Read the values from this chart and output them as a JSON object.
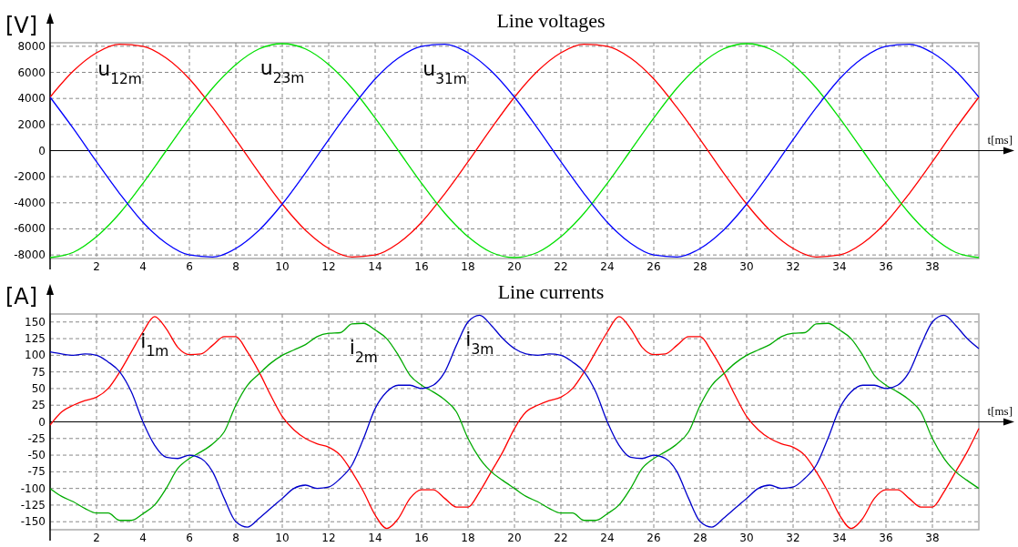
{
  "chart_data": [
    {
      "type": "line",
      "title": "Line voltages",
      "xlabel": "t[ms]",
      "ylabel": "[V]",
      "x": [
        0,
        1,
        2,
        3,
        4,
        5,
        6,
        7,
        8,
        9,
        10,
        11,
        12,
        13,
        14,
        15,
        16,
        17,
        18,
        19,
        20,
        21,
        22,
        23,
        24,
        25,
        26,
        27,
        28,
        29,
        30,
        31,
        32,
        33,
        34,
        35,
        36,
        37,
        38,
        39,
        40
      ],
      "series": [
        {
          "name": "u$_{12m}$",
          "color": "#ff0000",
          "values": [
            4100,
            6100,
            7500,
            8150,
            8000,
            7100,
            5500,
            3300,
            850,
            -1700,
            -4100,
            -6100,
            -7500,
            -8150,
            -8000,
            -7100,
            -5500,
            -3300,
            -850,
            1700,
            4100,
            6100,
            7500,
            8150,
            8000,
            7100,
            5500,
            3300,
            850,
            -1700,
            -4100,
            -6100,
            -7500,
            -8150,
            -8000,
            -7100,
            -5500,
            -3300,
            -850,
            1700,
            4100
          ]
        },
        {
          "name": "u$_{23m}$",
          "color": "#00e000",
          "values": [
            -8200,
            -7800,
            -6600,
            -4800,
            -2500,
            0,
            2500,
            4800,
            6600,
            7800,
            8200,
            7800,
            6600,
            4800,
            2500,
            0,
            -2500,
            -4800,
            -6600,
            -7800,
            -8200,
            -7800,
            -6600,
            -4800,
            -2500,
            0,
            2500,
            4800,
            6600,
            7800,
            8200,
            7800,
            6600,
            4800,
            2500,
            0,
            -2500,
            -4800,
            -6600,
            -7800,
            -8200
          ]
        },
        {
          "name": "u$_{31m}$",
          "color": "#0000ff",
          "values": [
            4100,
            1700,
            -850,
            -3300,
            -5500,
            -7100,
            -8000,
            -8150,
            -7500,
            -6100,
            -4100,
            -1700,
            850,
            3300,
            5500,
            7100,
            8000,
            8150,
            7500,
            6100,
            4100,
            1700,
            -850,
            -3300,
            -5500,
            -7100,
            -8000,
            -8150,
            -7500,
            -6100,
            -4100,
            -1700,
            850,
            3300,
            5500,
            7100,
            8000,
            8150,
            7500,
            6100,
            4100
          ]
        }
      ],
      "xlim": [
        0,
        40
      ],
      "xticks": [
        2,
        4,
        6,
        8,
        10,
        12,
        14,
        16,
        18,
        20,
        22,
        24,
        26,
        28,
        30,
        32,
        34,
        36,
        38
      ],
      "ylim": [
        -8270,
        8270
      ],
      "yticks": [
        -8000,
        -6000,
        -4000,
        -2000,
        0,
        2000,
        4000,
        6000,
        8000
      ],
      "grid": true,
      "legend": false,
      "line_style": "solid"
    },
    {
      "type": "line",
      "title": "Line currents",
      "xlabel": "t[ms]",
      "ylabel": "[A]",
      "x": [
        0,
        0.5,
        1,
        1.5,
        2,
        2.5,
        3,
        3.5,
        4,
        4.5,
        5,
        5.5,
        6,
        6.5,
        7,
        7.5,
        8,
        8.5,
        9,
        9.5,
        10,
        10.5,
        11,
        11.5,
        12,
        12.5,
        13,
        13.5,
        14,
        14.5,
        15,
        15.5,
        16,
        16.5,
        17,
        17.5,
        18,
        18.5,
        19,
        19.5,
        20,
        20.5,
        21,
        21.5,
        22,
        22.5,
        23,
        23.5,
        24,
        24.5,
        25,
        25.5,
        26,
        26.5,
        27,
        27.5,
        28,
        28.5,
        29,
        29.5,
        30,
        30.5,
        31,
        31.5,
        32,
        32.5,
        33,
        33.5,
        34,
        34.5,
        35,
        35.5,
        36,
        36.5,
        37,
        37.5,
        38,
        38.5,
        39,
        39.5,
        40
      ],
      "series": [
        {
          "name": "i$_{1m}$",
          "color": "#ff0000",
          "values": [
            -5,
            15,
            25,
            32,
            37,
            50,
            75,
            105,
            135,
            158,
            140,
            112,
            101,
            102,
            115,
            128,
            128,
            105,
            75,
            40,
            8,
            -12,
            -25,
            -33,
            -38,
            -50,
            -75,
            -105,
            -140,
            -160,
            -145,
            -115,
            -102,
            -102,
            -115,
            -128,
            -128,
            -105,
            -75,
            -45,
            -10,
            15,
            25,
            32,
            37,
            50,
            75,
            105,
            135,
            158,
            140,
            112,
            101,
            102,
            115,
            128,
            128,
            105,
            75,
            40,
            8,
            -12,
            -25,
            -33,
            -38,
            -50,
            -75,
            -105,
            -140,
            -160,
            -145,
            -115,
            -102,
            -102,
            -115,
            -128,
            -128,
            -105,
            -75,
            -45,
            -10
          ]
        },
        {
          "name": "i$_{2m}$",
          "color": "#00aa00",
          "values": [
            -100,
            -112,
            -120,
            -130,
            -137,
            -137,
            -148,
            -148,
            -138,
            -125,
            -100,
            -70,
            -55,
            -45,
            -33,
            -15,
            25,
            55,
            72,
            88,
            100,
            108,
            116,
            128,
            133,
            134,
            147,
            148,
            138,
            125,
            100,
            70,
            55,
            45,
            33,
            15,
            -25,
            -55,
            -75,
            -88,
            -100,
            -112,
            -120,
            -130,
            -137,
            -137,
            -148,
            -148,
            -138,
            -125,
            -100,
            -70,
            -55,
            -45,
            -33,
            -15,
            25,
            55,
            72,
            88,
            100,
            108,
            116,
            128,
            133,
            134,
            147,
            148,
            138,
            125,
            100,
            70,
            55,
            45,
            33,
            15,
            -25,
            -55,
            -75,
            -88,
            -100
          ]
        },
        {
          "name": "i$_{3m}$",
          "color": "#0000cc",
          "values": [
            105,
            102,
            100,
            102,
            100,
            90,
            75,
            45,
            0,
            -35,
            -53,
            -55,
            -50,
            -55,
            -75,
            -115,
            -150,
            -158,
            -145,
            -130,
            -115,
            -100,
            -95,
            -100,
            -98,
            -85,
            -65,
            -25,
            20,
            45,
            55,
            55,
            50,
            55,
            75,
            115,
            150,
            160,
            145,
            125,
            110,
            102,
            100,
            102,
            100,
            90,
            75,
            45,
            0,
            -35,
            -53,
            -55,
            -50,
            -55,
            -75,
            -115,
            -150,
            -158,
            -145,
            -130,
            -115,
            -100,
            -95,
            -100,
            -98,
            -85,
            -65,
            -25,
            20,
            45,
            55,
            55,
            50,
            55,
            75,
            115,
            150,
            160,
            145,
            125,
            110
          ]
        }
      ],
      "xlim": [
        0,
        40
      ],
      "xticks": [
        2,
        4,
        6,
        8,
        10,
        12,
        14,
        16,
        18,
        20,
        22,
        24,
        26,
        28,
        30,
        32,
        34,
        36,
        38
      ],
      "ylim": [
        -162,
        162
      ],
      "yticks": [
        -150,
        -125,
        -100,
        -75,
        -50,
        -25,
        0,
        25,
        50,
        75,
        100,
        125,
        150
      ],
      "grid": true,
      "legend": false,
      "line_style": "solid"
    }
  ]
}
